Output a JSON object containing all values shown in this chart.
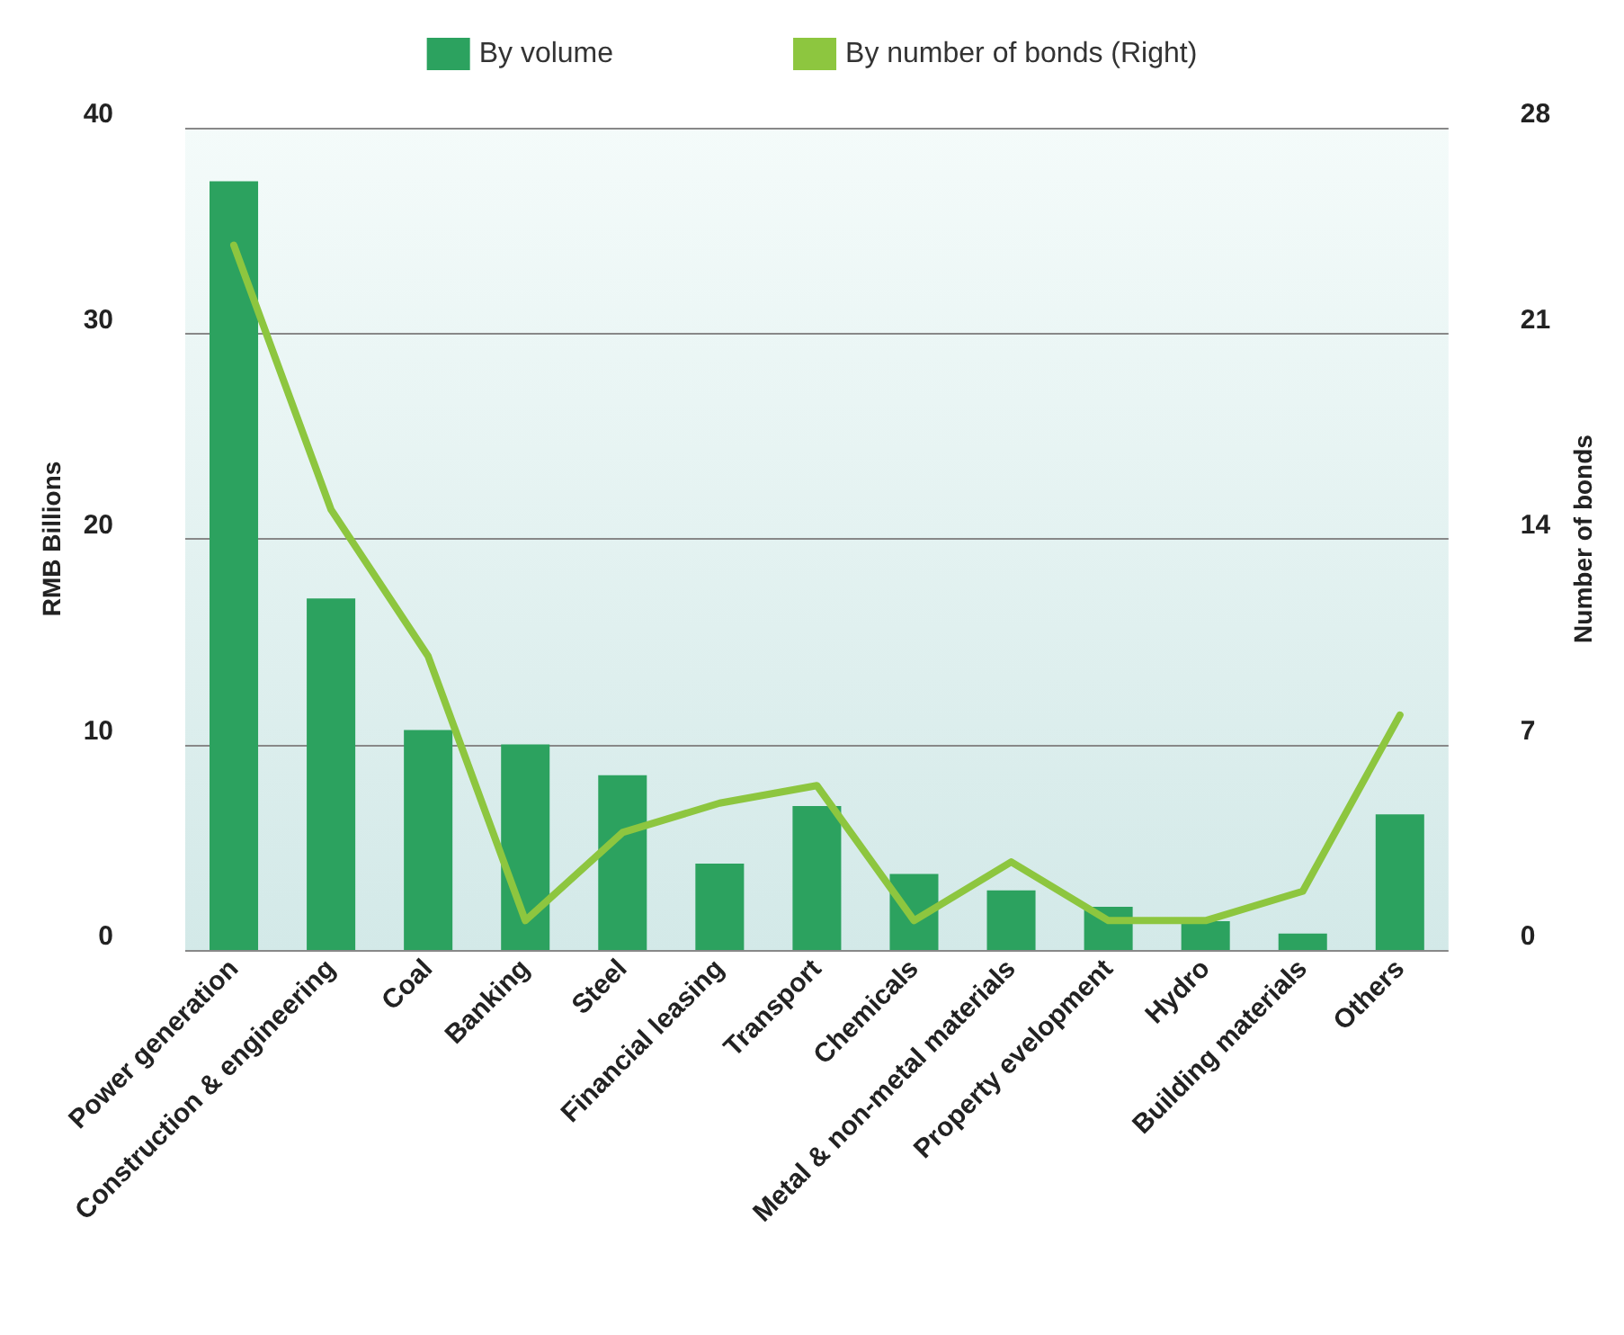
{
  "chart_data": {
    "type": "bar",
    "categories": [
      "Power generation",
      "Construction & engineering",
      "Coal",
      "Banking",
      "Steel",
      "Financial leasing",
      "Transport",
      "Chemicals",
      "Metal & non-metal materials",
      "Property evelopment",
      "Hydro",
      "Building materials",
      "Others"
    ],
    "series": [
      {
        "name": "By volume",
        "color": "#2ca25f",
        "values": [
          37.4,
          17.1,
          10.7,
          10.0,
          8.5,
          4.2,
          7.0,
          3.7,
          2.9,
          2.1,
          1.4,
          0.8,
          6.6
        ]
      },
      {
        "name": "By number of bonds (Right)",
        "type": "line",
        "axis": "y2",
        "color": "#8dc63f",
        "values": [
          24,
          15,
          10,
          1,
          4,
          5,
          5.6,
          1,
          3,
          1,
          1,
          2,
          8
        ]
      }
    ],
    "ylabel": "RMB Billions",
    "y2label": "Number of bonds",
    "ylim": [
      0,
      40
    ],
    "yticks": [
      0,
      10,
      20,
      30,
      40
    ],
    "y2lim": [
      0,
      28
    ],
    "y2ticks": [
      0,
      7,
      14,
      21,
      28
    ],
    "grid": "y",
    "legend": "top",
    "marker": "none"
  }
}
